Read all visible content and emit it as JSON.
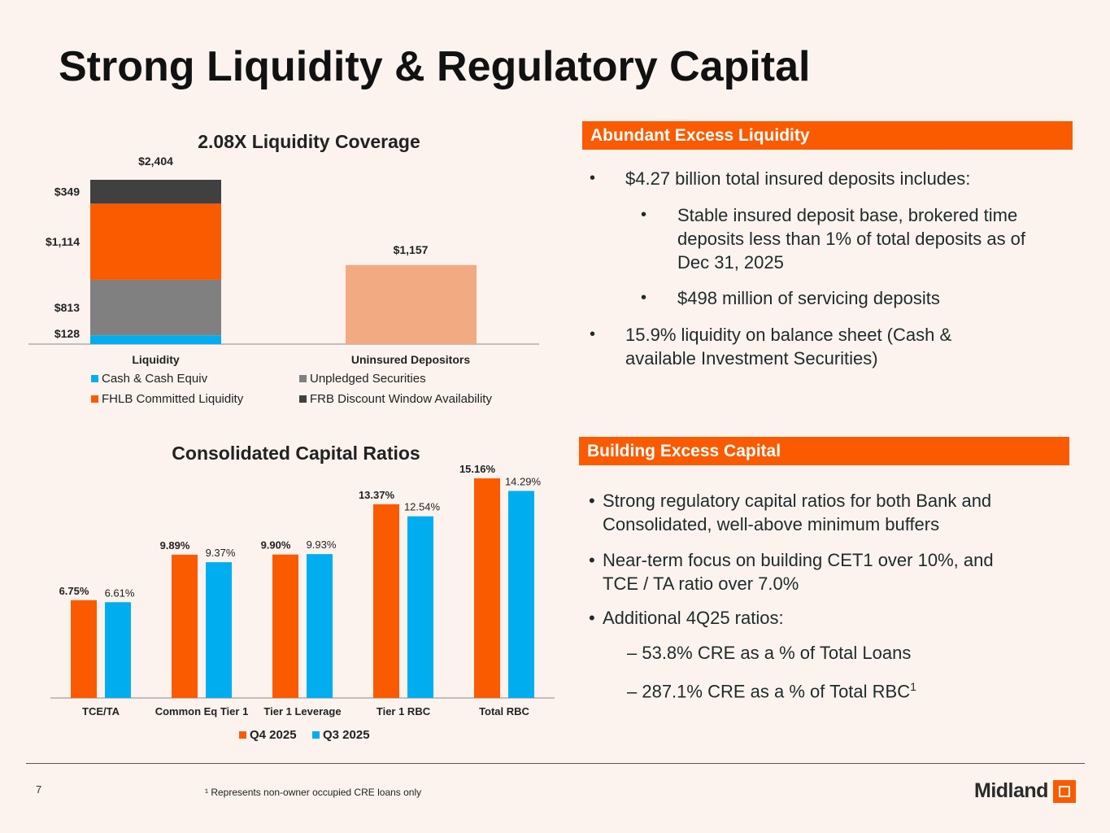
{
  "page": {
    "title": "Strong Liquidity & Regulatory Capital",
    "page_number": "7",
    "footnote": "¹ Represents non-owner occupied CRE loans only",
    "logo_text": "Midland",
    "accent_color": "#fa5a00"
  },
  "chart_data": [
    {
      "type": "bar",
      "stacked": true,
      "title": "2.08X Liquidity Coverage",
      "categories": [
        "Liquidity",
        "Uninsured Depositors"
      ],
      "series": [
        {
          "name": "Cash & Cash Equiv",
          "color": "#00aeef",
          "values": [
            128,
            null
          ],
          "labels": [
            "$128",
            ""
          ]
        },
        {
          "name": "Unpledged Securities",
          "color": "#808080",
          "values": [
            813,
            null
          ],
          "labels": [
            "$813",
            ""
          ]
        },
        {
          "name": "FHLB Committed Liquidity",
          "color": "#fa5a00",
          "values": [
            1114,
            null
          ],
          "labels": [
            "$1,114",
            ""
          ]
        },
        {
          "name": "FRB Discount Window Availability",
          "color": "#404040",
          "values": [
            349,
            null
          ],
          "labels": [
            "$349",
            ""
          ]
        }
      ],
      "uninsured": {
        "value": 1157,
        "label": "$1,157",
        "color": "#f2aa82"
      },
      "totals": {
        "value": 2404,
        "label": "$2,404"
      },
      "legend_position": "bottom",
      "ylim": [
        0,
        2404
      ]
    },
    {
      "type": "bar",
      "title": "Consolidated Capital Ratios",
      "categories": [
        "TCE/TA",
        "Common Eq Tier 1",
        "Tier 1 Leverage",
        "Tier 1 RBC",
        "Total RBC"
      ],
      "series": [
        {
          "name": "Q4 2025",
          "color": "#fa5a00",
          "values": [
            6.75,
            9.89,
            9.9,
            13.37,
            15.16
          ],
          "labels": [
            "6.75%",
            "9.89%",
            "9.90%",
            "13.37%",
            "15.16%"
          ]
        },
        {
          "name": "Q3 2025",
          "color": "#00aeef",
          "values": [
            6.61,
            9.37,
            9.93,
            12.54,
            14.29
          ],
          "labels": [
            "6.61%",
            "9.37%",
            "9.93%",
            "12.54%",
            "14.29%"
          ]
        }
      ],
      "legend_position": "bottom",
      "ylim": [
        0,
        15.16
      ]
    }
  ],
  "liquidity_section": {
    "header": "Abundant Excess Liquidity",
    "bullets": [
      {
        "text": "$4.27 billion total insured deposits includes:",
        "level": 1
      },
      {
        "text": "Stable insured deposit base, brokered time deposits less than 1% of total deposits as of Dec 31, 2025",
        "level": 2
      },
      {
        "text": "$498 million of servicing deposits",
        "level": 2
      },
      {
        "text": "15.9% liquidity on balance sheet (Cash & available Investment Securities)",
        "level": 1
      }
    ]
  },
  "capital_section": {
    "header": "Building Excess Capital",
    "bullets": [
      "Strong regulatory capital ratios for both Bank and Consolidated, well-above minimum buffers",
      "Near-term focus on building CET1 over 10%, and TCE / TA ratio over 7.0%",
      "Additional 4Q25 ratios:"
    ],
    "sub_items": [
      {
        "text": "– 53.8% CRE as a % of Total Loans",
        "sup": ""
      },
      {
        "text": "– 287.1% CRE as a % of Total RBC",
        "sup": "1"
      }
    ]
  }
}
